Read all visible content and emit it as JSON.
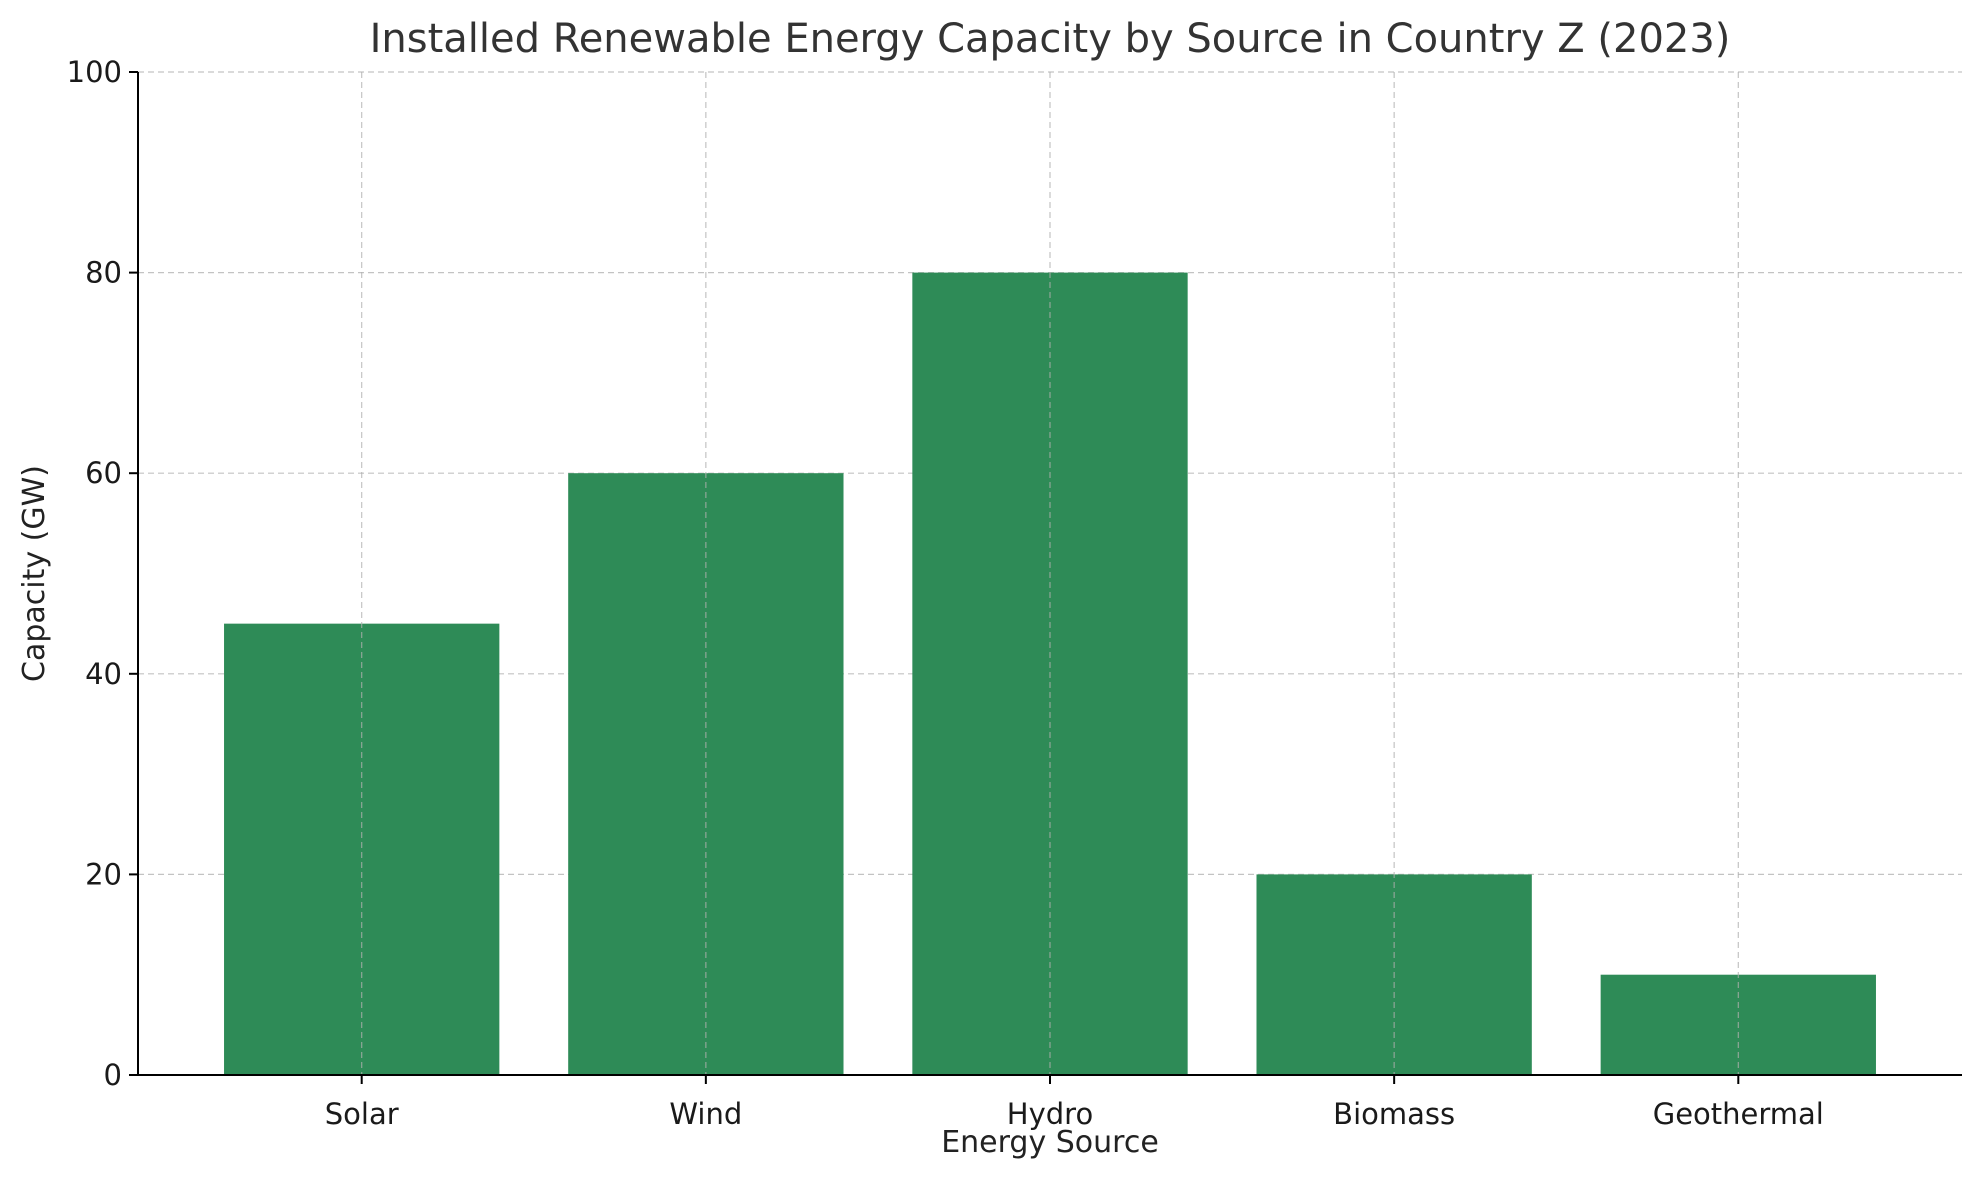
{
  "chart_data": {
    "type": "bar",
    "title": "Installed Renewable Energy Capacity by Source in Country Z (2023)",
    "xlabel": "Energy Source",
    "ylabel": "Capacity (GW)",
    "categories": [
      "Solar",
      "Wind",
      "Hydro",
      "Biomass",
      "Geothermal"
    ],
    "values": [
      45,
      60,
      80,
      20,
      10
    ],
    "ylim": [
      0,
      100
    ],
    "yticks": [
      0,
      20,
      40,
      60,
      80,
      100
    ],
    "grid": true,
    "legend": "none",
    "colors": {
      "bar": "#2e8b57",
      "grid": "#b0b0b0",
      "axis": "#000000"
    }
  }
}
